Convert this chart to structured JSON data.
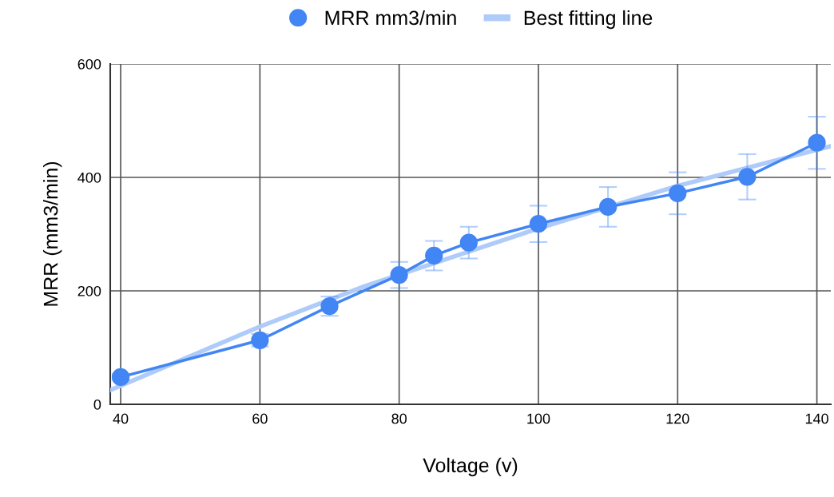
{
  "chart_data": {
    "type": "line",
    "xlabel": "Voltage (v)",
    "ylabel": "MRR (mm3/min)",
    "xlim": [
      38.5,
      142
    ],
    "xticks": [
      40,
      60,
      80,
      100,
      120,
      140
    ],
    "ylim": [
      0,
      600
    ],
    "yticks": [
      0,
      200,
      400,
      600
    ],
    "grid": true,
    "legend": "top",
    "series": [
      {
        "name": "MRR mm3/min",
        "color": "#4285f4",
        "marker": "circle",
        "x": [
          40,
          60,
          70,
          80,
          85,
          90,
          100,
          110,
          120,
          130,
          140
        ],
        "values": [
          48,
          113,
          173,
          228,
          262,
          285,
          318,
          348,
          372,
          401,
          461
        ],
        "errors": [
          5,
          11,
          17,
          23,
          26,
          28,
          32,
          35,
          37,
          40,
          46
        ]
      },
      {
        "name": "Best fitting line",
        "color": "#aecbfa",
        "marker": "none",
        "x": [
          38.5,
          60,
          75,
          100,
          120,
          142
        ],
        "values": [
          25,
          137,
          208,
          310,
          385,
          455
        ]
      }
    ]
  }
}
